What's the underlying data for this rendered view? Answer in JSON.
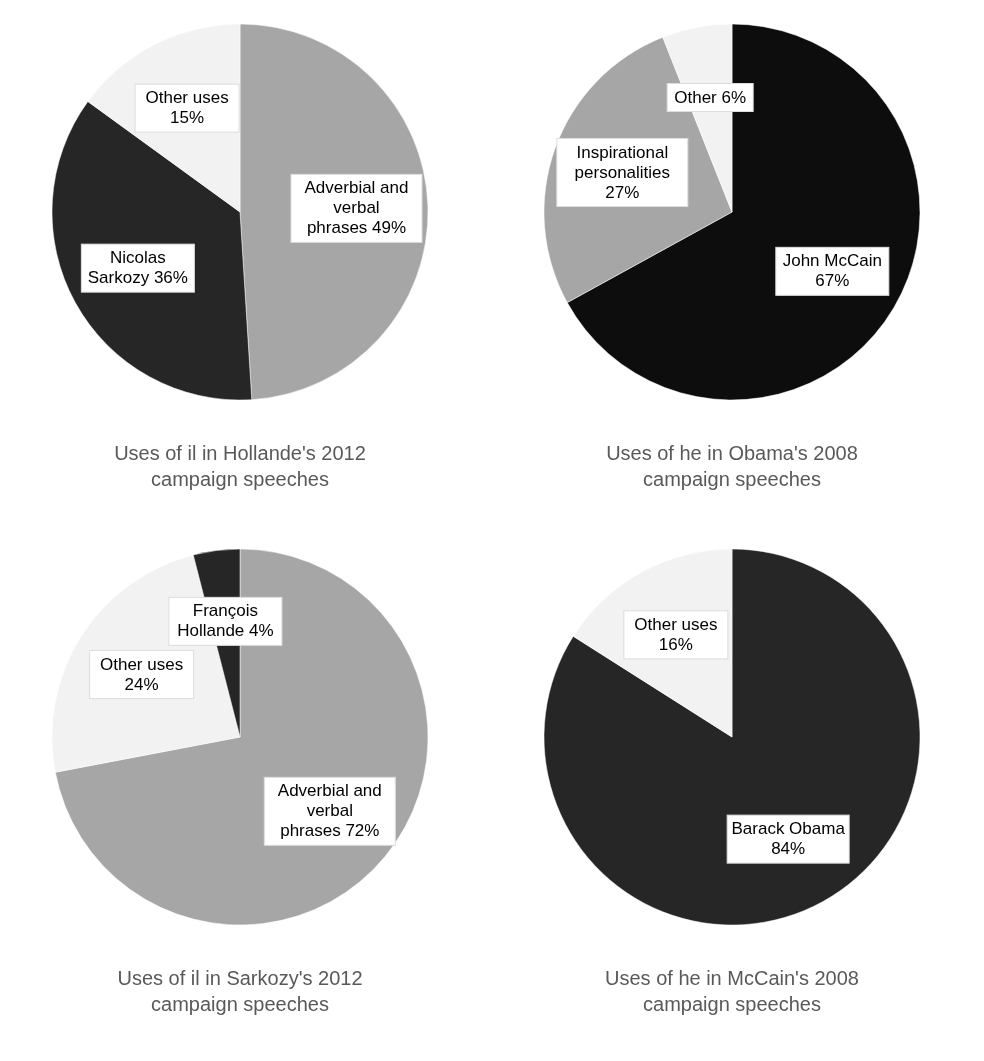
{
  "chart_data": [
    {
      "type": "pie",
      "title": "Uses of il in Hollande's 2012 campaign speeches",
      "categories": [
        "Adverbial and verbal phrases",
        "Nicolas Sarkozy",
        "Other uses"
      ],
      "values": [
        49,
        36,
        15
      ],
      "colors": [
        "#a6a6a6",
        "#262626",
        "#f2f2f2"
      ],
      "value_labels": [
        "49%",
        "36%",
        "15%"
      ]
    },
    {
      "type": "pie",
      "title": "Uses of he in Obama's 2008 campaign speeches",
      "categories": [
        "John McCain",
        "Inspirational personalities",
        "Other"
      ],
      "values": [
        67,
        27,
        6
      ],
      "colors": [
        "#0d0d0d",
        "#a6a6a6",
        "#f2f2f2"
      ],
      "value_labels": [
        "67%",
        "27%",
        "6%"
      ]
    },
    {
      "type": "pie",
      "title": "Uses of il in Sarkozy's 2012 campaign speeches",
      "categories": [
        "Adverbial and verbal phrases",
        "Other uses",
        "François Hollande"
      ],
      "values": [
        72,
        24,
        4
      ],
      "colors": [
        "#a6a6a6",
        "#f2f2f2",
        "#262626"
      ],
      "value_labels": [
        "72%",
        "24%",
        "4%"
      ]
    },
    {
      "type": "pie",
      "title": "Uses of he in McCain's 2008 campaign speeches",
      "categories": [
        "Barack Obama",
        "Other uses"
      ],
      "values": [
        84,
        16
      ],
      "colors": [
        "#262626",
        "#f2f2f2"
      ],
      "value_labels": [
        "84%",
        "16%"
      ]
    }
  ]
}
